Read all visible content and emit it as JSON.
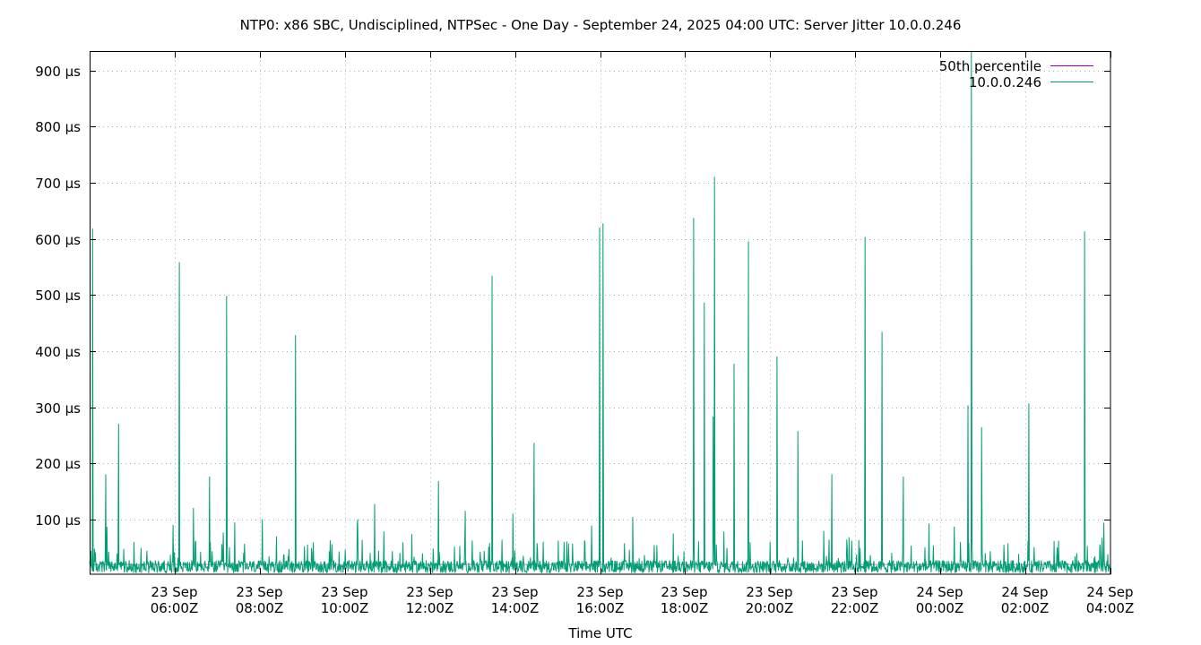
{
  "chart_data": {
    "type": "line",
    "title": "NTP0: x86 SBC, Undisciplined, NTPSec - One Day - September 24, 2025 04:00 UTC: Server Jitter 10.0.0.246",
    "xlabel": "Time UTC",
    "ylabel": "",
    "ylim": [
      0,
      935
    ],
    "yunit": "µs",
    "grid": true,
    "legend_position": "top-right-inside",
    "y_ticks": [
      {
        "value": 100,
        "label": "100 µs"
      },
      {
        "value": 200,
        "label": "200 µs"
      },
      {
        "value": 300,
        "label": "300 µs"
      },
      {
        "value": 400,
        "label": "400 µs"
      },
      {
        "value": 500,
        "label": "500 µs"
      },
      {
        "value": 600,
        "label": "600 µs"
      },
      {
        "value": 700,
        "label": "700 µs"
      },
      {
        "value": 800,
        "label": "800 µs"
      },
      {
        "value": 900,
        "label": "900 µs"
      }
    ],
    "x_range_hours": [
      0,
      24
    ],
    "x_start": "23 Sep 04:00Z",
    "x_ticks": [
      {
        "hour": 2,
        "line1": "23 Sep",
        "line2": "06:00Z"
      },
      {
        "hour": 4,
        "line1": "23 Sep",
        "line2": "08:00Z"
      },
      {
        "hour": 6,
        "line1": "23 Sep",
        "line2": "10:00Z"
      },
      {
        "hour": 8,
        "line1": "23 Sep",
        "line2": "12:00Z"
      },
      {
        "hour": 10,
        "line1": "23 Sep",
        "line2": "14:00Z"
      },
      {
        "hour": 12,
        "line1": "23 Sep",
        "line2": "16:00Z"
      },
      {
        "hour": 14,
        "line1": "23 Sep",
        "line2": "18:00Z"
      },
      {
        "hour": 16,
        "line1": "23 Sep",
        "line2": "20:00Z"
      },
      {
        "hour": 18,
        "line1": "23 Sep",
        "line2": "22:00Z"
      },
      {
        "hour": 20,
        "line1": "24 Sep",
        "line2": "00:00Z"
      },
      {
        "hour": 22,
        "line1": "24 Sep",
        "line2": "02:00Z"
      },
      {
        "hour": 24,
        "line1": "24 Sep",
        "line2": "04:00Z"
      }
    ],
    "series": [
      {
        "name": "50th percentile",
        "color": "#9400d3",
        "value_us": 20
      },
      {
        "name": "10.0.0.246",
        "color": "#009e73",
        "baseline_range_us": [
          5,
          45
        ],
        "spikes": [
          {
            "hour": 0.07,
            "value": 618
          },
          {
            "hour": 0.38,
            "value": 180
          },
          {
            "hour": 0.68,
            "value": 270
          },
          {
            "hour": 2.11,
            "value": 558
          },
          {
            "hour": 2.44,
            "value": 120
          },
          {
            "hour": 2.82,
            "value": 176
          },
          {
            "hour": 3.22,
            "value": 498
          },
          {
            "hour": 4.06,
            "value": 100
          },
          {
            "hour": 4.84,
            "value": 428
          },
          {
            "hour": 6.3,
            "value": 100
          },
          {
            "hour": 6.7,
            "value": 127
          },
          {
            "hour": 8.2,
            "value": 168
          },
          {
            "hour": 8.83,
            "value": 115
          },
          {
            "hour": 9.46,
            "value": 534
          },
          {
            "hour": 9.95,
            "value": 110
          },
          {
            "hour": 10.45,
            "value": 236
          },
          {
            "hour": 11.99,
            "value": 620
          },
          {
            "hour": 12.07,
            "value": 627
          },
          {
            "hour": 12.77,
            "value": 104
          },
          {
            "hour": 14.2,
            "value": 637
          },
          {
            "hour": 14.45,
            "value": 486
          },
          {
            "hour": 14.66,
            "value": 283
          },
          {
            "hour": 14.69,
            "value": 710
          },
          {
            "hour": 15.15,
            "value": 377
          },
          {
            "hour": 15.49,
            "value": 595
          },
          {
            "hour": 16.16,
            "value": 390
          },
          {
            "hour": 16.65,
            "value": 257
          },
          {
            "hour": 17.45,
            "value": 180
          },
          {
            "hour": 18.23,
            "value": 603
          },
          {
            "hour": 18.63,
            "value": 434
          },
          {
            "hour": 19.13,
            "value": 176
          },
          {
            "hour": 20.65,
            "value": 303
          },
          {
            "hour": 20.73,
            "value": 940
          },
          {
            "hour": 20.97,
            "value": 264
          },
          {
            "hour": 22.08,
            "value": 306
          },
          {
            "hour": 23.39,
            "value": 613
          }
        ]
      }
    ]
  }
}
